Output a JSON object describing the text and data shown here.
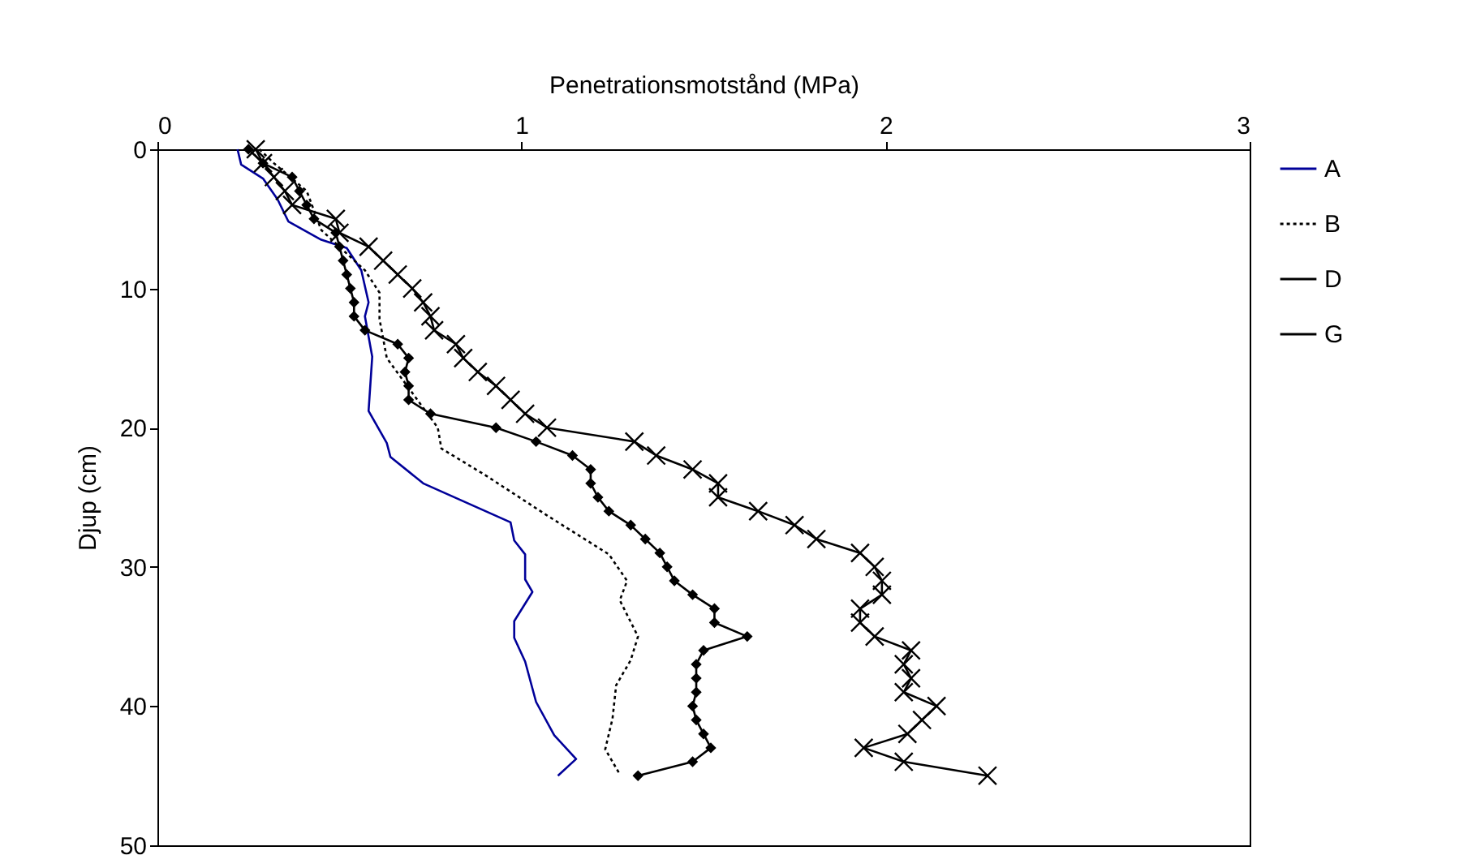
{
  "chart_data": {
    "type": "line",
    "xlabel": "Penetrationsmotstånd (MPa)",
    "ylabel": "Djup (cm)",
    "xlim": [
      0,
      3
    ],
    "xticks": [
      0,
      1,
      2,
      3
    ],
    "ylim": [
      50,
      0
    ],
    "yticks": [
      0,
      10,
      20,
      30,
      40,
      50
    ],
    "grid": false,
    "legend": "right",
    "series": [
      {
        "name": "A",
        "color": "#000099",
        "line_style": "solid",
        "marker": "none",
        "x": [
          0.22,
          0.23,
          0.29,
          0.33,
          0.36,
          0.45,
          0.52,
          0.56,
          0.58,
          0.57,
          0.59,
          0.58,
          0.63,
          0.64,
          0.73,
          0.97,
          0.98,
          1.01,
          1.01,
          1.03,
          0.98,
          0.98,
          1.01,
          1.04,
          1.09,
          1.15,
          1.1
        ],
        "values": [
          0,
          1.1,
          2.1,
          3.6,
          5.2,
          6.5,
          7.1,
          8.7,
          11,
          12,
          14.9,
          18.8,
          21.1,
          22.1,
          24,
          26.8,
          28.1,
          29.1,
          30.9,
          31.8,
          33.9,
          35.1,
          36.8,
          39.7,
          42.1,
          43.8,
          45
        ]
      },
      {
        "name": "B",
        "color": "#000000",
        "line_style": "dotted",
        "marker": "none",
        "x": [
          0.28,
          0.32,
          0.41,
          0.45,
          0.57,
          0.61,
          0.61,
          0.63,
          0.77,
          0.78,
          0.9,
          1.07,
          1.24,
          1.29,
          1.27,
          1.32,
          1.3,
          1.26,
          1.25,
          1.23,
          1.27
        ],
        "values": [
          0,
          1,
          3,
          5.8,
          8.7,
          10.3,
          12.2,
          15,
          20,
          21.5,
          23.4,
          26.3,
          29.1,
          31,
          32.4,
          35,
          36.7,
          38.5,
          40.9,
          43.1,
          44.9
        ]
      },
      {
        "name": "D",
        "color": "#000000",
        "line_style": "solid",
        "marker": "diamond",
        "x": [
          0.25,
          0.29,
          0.37,
          0.39,
          0.41,
          0.43,
          0.49,
          0.5,
          0.51,
          0.52,
          0.53,
          0.54,
          0.54,
          0.57,
          0.66,
          0.69,
          0.68,
          0.69,
          0.69,
          0.75,
          0.93,
          1.04,
          1.14,
          1.19,
          1.19,
          1.21,
          1.24,
          1.3,
          1.34,
          1.38,
          1.4,
          1.42,
          1.47,
          1.53,
          1.53,
          1.62,
          1.5,
          1.48,
          1.48,
          1.48,
          1.47,
          1.48,
          1.5,
          1.52,
          1.47,
          1.32
        ],
        "values": [
          0,
          1,
          2,
          3,
          4,
          5,
          6,
          7,
          8,
          9,
          10,
          11,
          12,
          13,
          14,
          15,
          16,
          17,
          18,
          19,
          20,
          21,
          22,
          23,
          24,
          25,
          26,
          27,
          28,
          29,
          30,
          31,
          32,
          33,
          34,
          35,
          36,
          37,
          38,
          39,
          40,
          41,
          42,
          43,
          44,
          45
        ]
      },
      {
        "name": "G",
        "color": "#000000",
        "line_style": "solid",
        "marker": "cross",
        "x": [
          0.27,
          0.29,
          0.32,
          0.35,
          0.37,
          0.49,
          0.5,
          0.58,
          0.62,
          0.66,
          0.7,
          0.73,
          0.75,
          0.76,
          0.82,
          0.84,
          0.88,
          0.93,
          0.97,
          1.01,
          1.07,
          1.31,
          1.37,
          1.47,
          1.54,
          1.54,
          1.65,
          1.75,
          1.81,
          1.93,
          1.97,
          1.99,
          1.99,
          1.93,
          1.93,
          1.97,
          2.07,
          2.05,
          2.07,
          2.05,
          2.14,
          2.1,
          2.06,
          1.94,
          2.05,
          2.28
        ],
        "values": [
          0,
          1,
          2,
          3,
          4,
          5,
          6,
          7,
          8,
          9,
          10,
          11,
          12,
          13,
          14,
          15,
          16,
          17,
          18,
          19,
          20,
          21,
          22,
          23,
          24,
          25,
          26,
          27,
          28,
          29,
          30,
          31,
          32,
          33,
          34,
          35,
          36,
          37,
          38,
          39,
          40,
          41,
          42,
          43,
          44,
          45
        ]
      }
    ]
  }
}
